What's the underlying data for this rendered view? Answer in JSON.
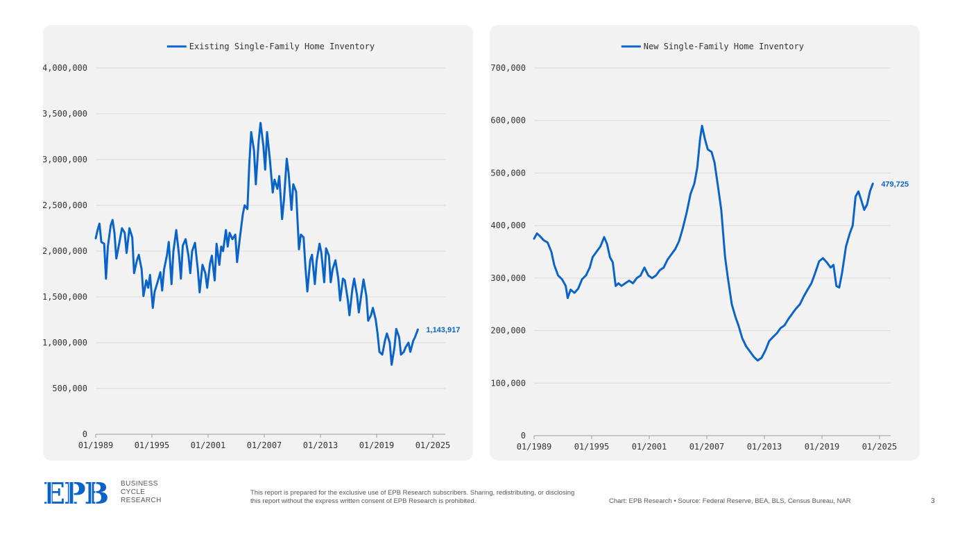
{
  "colors": {
    "series": "#0a64c8",
    "grid": "#d9d9d9",
    "panel": "#f2f2f2",
    "axis_text": "#333333"
  },
  "chart_data": [
    {
      "type": "line",
      "legend": "Existing Single-Family Home Inventory",
      "legend_placement": "top-center",
      "grid": true,
      "ylim": [
        0,
        4000000
      ],
      "y_ticks": [
        0,
        500000,
        1000000,
        1500000,
        2000000,
        2500000,
        3000000,
        3500000,
        4000000
      ],
      "y_tick_labels": [
        "0",
        "500,000",
        "1,000,000",
        "1,500,000",
        "2,000,000",
        "2,500,000",
        "3,000,000",
        "3,500,000",
        "4,000,000"
      ],
      "xlim": [
        1989.0,
        2025.0
      ],
      "x_ticks": [
        1989,
        1995,
        2001,
        2007,
        2013,
        2019,
        2025
      ],
      "x_tick_labels": [
        "01/1989",
        "01/1995",
        "01/2001",
        "01/2007",
        "01/2013",
        "01/2019",
        "01/2025"
      ],
      "end_label": "1,143,917",
      "series": [
        {
          "name": "Existing Single-Family Home Inventory",
          "points": [
            [
              1989.0,
              2140000
            ],
            [
              1989.2,
              2230000
            ],
            [
              1989.4,
              2300000
            ],
            [
              1989.6,
              2100000
            ],
            [
              1989.9,
              2080000
            ],
            [
              1990.1,
              1700000
            ],
            [
              1990.3,
              2050000
            ],
            [
              1990.6,
              2280000
            ],
            [
              1990.8,
              2340000
            ],
            [
              1991.0,
              2200000
            ],
            [
              1991.2,
              1920000
            ],
            [
              1991.5,
              2080000
            ],
            [
              1991.8,
              2250000
            ],
            [
              1992.1,
              2200000
            ],
            [
              1992.3,
              1980000
            ],
            [
              1992.6,
              2250000
            ],
            [
              1992.9,
              2150000
            ],
            [
              1993.1,
              1760000
            ],
            [
              1993.4,
              1900000
            ],
            [
              1993.6,
              1960000
            ],
            [
              1993.9,
              1800000
            ],
            [
              1994.1,
              1510000
            ],
            [
              1994.4,
              1680000
            ],
            [
              1994.6,
              1600000
            ],
            [
              1994.8,
              1740000
            ],
            [
              1995.1,
              1380000
            ],
            [
              1995.3,
              1560000
            ],
            [
              1995.6,
              1660000
            ],
            [
              1995.9,
              1770000
            ],
            [
              1996.1,
              1570000
            ],
            [
              1996.3,
              1800000
            ],
            [
              1996.6,
              1950000
            ],
            [
              1996.8,
              2100000
            ],
            [
              1997.1,
              1640000
            ],
            [
              1997.3,
              2000000
            ],
            [
              1997.6,
              2230000
            ],
            [
              1997.9,
              1950000
            ],
            [
              1998.1,
              1700000
            ],
            [
              1998.3,
              2060000
            ],
            [
              1998.6,
              2130000
            ],
            [
              1998.9,
              1950000
            ],
            [
              1999.1,
              1760000
            ],
            [
              1999.3,
              2000000
            ],
            [
              1999.6,
              2090000
            ],
            [
              1999.9,
              1800000
            ],
            [
              2000.1,
              1550000
            ],
            [
              2000.4,
              1850000
            ],
            [
              2000.7,
              1760000
            ],
            [
              2000.9,
              1600000
            ],
            [
              2001.2,
              1860000
            ],
            [
              2001.4,
              1950000
            ],
            [
              2001.7,
              1680000
            ],
            [
              2001.9,
              2080000
            ],
            [
              2002.2,
              1850000
            ],
            [
              2002.4,
              2050000
            ],
            [
              2002.6,
              2000000
            ],
            [
              2002.9,
              2230000
            ],
            [
              2003.1,
              2050000
            ],
            [
              2003.3,
              2200000
            ],
            [
              2003.6,
              2130000
            ],
            [
              2003.9,
              2180000
            ],
            [
              2004.1,
              1880000
            ],
            [
              2004.4,
              2150000
            ],
            [
              2004.7,
              2400000
            ],
            [
              2004.9,
              2500000
            ],
            [
              2005.2,
              2460000
            ],
            [
              2005.4,
              2950000
            ],
            [
              2005.6,
              3300000
            ],
            [
              2005.9,
              3100000
            ],
            [
              2006.1,
              2730000
            ],
            [
              2006.4,
              3200000
            ],
            [
              2006.6,
              3400000
            ],
            [
              2006.9,
              3150000
            ],
            [
              2007.1,
              2890000
            ],
            [
              2007.3,
              3300000
            ],
            [
              2007.6,
              3000000
            ],
            [
              2007.9,
              2640000
            ],
            [
              2008.1,
              2780000
            ],
            [
              2008.4,
              2680000
            ],
            [
              2008.6,
              2820000
            ],
            [
              2008.9,
              2350000
            ],
            [
              2009.1,
              2550000
            ],
            [
              2009.4,
              3010000
            ],
            [
              2009.6,
              2850000
            ],
            [
              2009.9,
              2450000
            ],
            [
              2010.1,
              2730000
            ],
            [
              2010.4,
              2650000
            ],
            [
              2010.7,
              2020000
            ],
            [
              2010.9,
              2180000
            ],
            [
              2011.2,
              2150000
            ],
            [
              2011.4,
              1820000
            ],
            [
              2011.6,
              1560000
            ],
            [
              2011.9,
              1900000
            ],
            [
              2012.1,
              1960000
            ],
            [
              2012.4,
              1640000
            ],
            [
              2012.6,
              1900000
            ],
            [
              2012.9,
              2080000
            ],
            [
              2013.1,
              1980000
            ],
            [
              2013.4,
              1660000
            ],
            [
              2013.6,
              2030000
            ],
            [
              2013.9,
              1950000
            ],
            [
              2014.1,
              1660000
            ],
            [
              2014.3,
              1800000
            ],
            [
              2014.6,
              1900000
            ],
            [
              2014.9,
              1700000
            ],
            [
              2015.1,
              1460000
            ],
            [
              2015.4,
              1700000
            ],
            [
              2015.6,
              1680000
            ],
            [
              2015.9,
              1480000
            ],
            [
              2016.1,
              1300000
            ],
            [
              2016.4,
              1580000
            ],
            [
              2016.6,
              1700000
            ],
            [
              2016.9,
              1520000
            ],
            [
              2017.1,
              1330000
            ],
            [
              2017.4,
              1550000
            ],
            [
              2017.6,
              1690000
            ],
            [
              2017.9,
              1510000
            ],
            [
              2018.1,
              1240000
            ],
            [
              2018.4,
              1300000
            ],
            [
              2018.6,
              1380000
            ],
            [
              2018.9,
              1250000
            ],
            [
              2019.1,
              1100000
            ],
            [
              2019.3,
              900000
            ],
            [
              2019.6,
              870000
            ],
            [
              2019.9,
              1030000
            ],
            [
              2020.1,
              1100000
            ],
            [
              2020.4,
              1000000
            ],
            [
              2020.6,
              760000
            ],
            [
              2020.9,
              950000
            ],
            [
              2021.1,
              1150000
            ],
            [
              2021.4,
              1060000
            ],
            [
              2021.6,
              870000
            ],
            [
              2021.9,
              900000
            ],
            [
              2022.1,
              950000
            ],
            [
              2022.4,
              1000000
            ],
            [
              2022.6,
              900000
            ],
            [
              2022.9,
              1020000
            ],
            [
              2023.1,
              1060000
            ],
            [
              2023.4,
              1143917
            ]
          ]
        }
      ]
    },
    {
      "type": "line",
      "legend": "New Single-Family Home Inventory",
      "legend_placement": "top-center",
      "grid": true,
      "ylim": [
        0,
        700000
      ],
      "y_ticks": [
        0,
        100000,
        200000,
        300000,
        400000,
        500000,
        600000,
        700000
      ],
      "y_tick_labels": [
        "0",
        "100,000",
        "200,000",
        "300,000",
        "400,000",
        "500,000",
        "600,000",
        "700,000"
      ],
      "xlim": [
        1989.0,
        2025.0
      ],
      "x_ticks": [
        1989,
        1995,
        2001,
        2007,
        2013,
        2019,
        2025
      ],
      "x_tick_labels": [
        "01/1989",
        "01/1995",
        "01/2001",
        "01/2007",
        "01/2013",
        "01/2019",
        "01/2025"
      ],
      "end_label": "479,725",
      "series": [
        {
          "name": "New Single-Family Home Inventory",
          "points": [
            [
              1989.0,
              375000
            ],
            [
              1989.3,
              385000
            ],
            [
              1989.6,
              380000
            ],
            [
              1990.0,
              372000
            ],
            [
              1990.4,
              368000
            ],
            [
              1990.8,
              350000
            ],
            [
              1991.1,
              325000
            ],
            [
              1991.5,
              305000
            ],
            [
              1991.9,
              298000
            ],
            [
              1992.3,
              285000
            ],
            [
              1992.5,
              262000
            ],
            [
              1992.8,
              278000
            ],
            [
              1993.2,
              272000
            ],
            [
              1993.6,
              280000
            ],
            [
              1994.0,
              298000
            ],
            [
              1994.4,
              305000
            ],
            [
              1994.8,
              320000
            ],
            [
              1995.1,
              340000
            ],
            [
              1995.5,
              350000
            ],
            [
              1995.9,
              360000
            ],
            [
              1996.3,
              378000
            ],
            [
              1996.6,
              365000
            ],
            [
              1996.9,
              340000
            ],
            [
              1997.2,
              330000
            ],
            [
              1997.5,
              285000
            ],
            [
              1997.8,
              290000
            ],
            [
              1998.1,
              285000
            ],
            [
              1998.5,
              290000
            ],
            [
              1998.9,
              295000
            ],
            [
              1999.3,
              290000
            ],
            [
              1999.7,
              300000
            ],
            [
              2000.1,
              305000
            ],
            [
              2000.5,
              320000
            ],
            [
              2000.9,
              305000
            ],
            [
              2001.3,
              300000
            ],
            [
              2001.7,
              305000
            ],
            [
              2002.1,
              315000
            ],
            [
              2002.5,
              320000
            ],
            [
              2002.9,
              335000
            ],
            [
              2003.3,
              345000
            ],
            [
              2003.7,
              355000
            ],
            [
              2004.1,
              370000
            ],
            [
              2004.5,
              395000
            ],
            [
              2004.9,
              425000
            ],
            [
              2005.3,
              460000
            ],
            [
              2005.7,
              480000
            ],
            [
              2006.0,
              510000
            ],
            [
              2006.3,
              565000
            ],
            [
              2006.5,
              590000
            ],
            [
              2006.8,
              565000
            ],
            [
              2007.1,
              545000
            ],
            [
              2007.5,
              540000
            ],
            [
              2007.8,
              520000
            ],
            [
              2008.2,
              470000
            ],
            [
              2008.5,
              430000
            ],
            [
              2008.9,
              340000
            ],
            [
              2009.2,
              300000
            ],
            [
              2009.6,
              250000
            ],
            [
              2010.0,
              225000
            ],
            [
              2010.3,
              210000
            ],
            [
              2010.7,
              185000
            ],
            [
              2011.1,
              170000
            ],
            [
              2011.5,
              160000
            ],
            [
              2011.9,
              150000
            ],
            [
              2012.3,
              143000
            ],
            [
              2012.7,
              148000
            ],
            [
              2013.1,
              162000
            ],
            [
              2013.5,
              180000
            ],
            [
              2013.9,
              188000
            ],
            [
              2014.3,
              195000
            ],
            [
              2014.7,
              205000
            ],
            [
              2015.1,
              210000
            ],
            [
              2015.5,
              222000
            ],
            [
              2015.9,
              232000
            ],
            [
              2016.3,
              242000
            ],
            [
              2016.7,
              250000
            ],
            [
              2017.1,
              265000
            ],
            [
              2017.5,
              278000
            ],
            [
              2017.9,
              290000
            ],
            [
              2018.3,
              310000
            ],
            [
              2018.7,
              332000
            ],
            [
              2019.1,
              338000
            ],
            [
              2019.5,
              330000
            ],
            [
              2019.9,
              320000
            ],
            [
              2020.2,
              325000
            ],
            [
              2020.5,
              285000
            ],
            [
              2020.8,
              282000
            ],
            [
              2021.1,
              310000
            ],
            [
              2021.5,
              360000
            ],
            [
              2021.9,
              385000
            ],
            [
              2022.2,
              400000
            ],
            [
              2022.5,
              455000
            ],
            [
              2022.8,
              465000
            ],
            [
              2023.1,
              448000
            ],
            [
              2023.4,
              430000
            ],
            [
              2023.7,
              440000
            ],
            [
              2024.0,
              465000
            ],
            [
              2024.3,
              479725
            ]
          ]
        }
      ]
    }
  ],
  "footer": {
    "logo_letters": "EPB",
    "logo_text": [
      "BUSINESS",
      "CYCLE",
      "RESEARCH"
    ],
    "disclaimer": "This report is prepared for the exclusive use of EPB Research subscribers. Sharing, redistributing, or disclosing this report without the express written consent of EPB Research is prohibited.",
    "source": "Chart: EPB Research  •  Source: Federal Reserve, BEA, BLS, Census Bureau, NAR",
    "page_number": "3"
  }
}
